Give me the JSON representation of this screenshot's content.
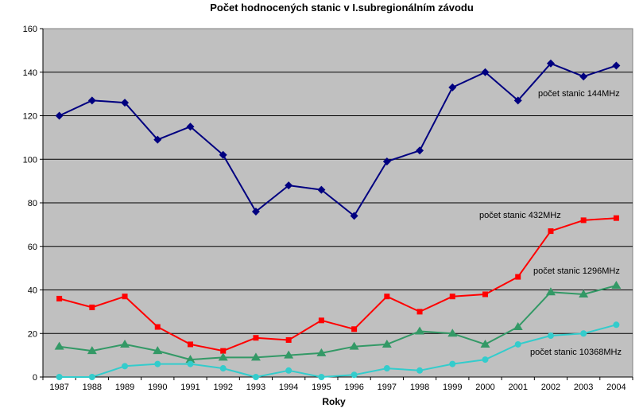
{
  "chart_data": {
    "type": "line",
    "title": "Počet hodnocených stanic v I.subregionálním závodu",
    "xlabel": "Roky",
    "ylabel": "",
    "ylim": [
      0,
      160
    ],
    "yticks": [
      0,
      20,
      40,
      60,
      80,
      100,
      120,
      140,
      160
    ],
    "grid": true,
    "legend": "labels next to lines",
    "plot_background": "#c0c0c0",
    "x": [
      "1987",
      "1988",
      "1989",
      "1990",
      "1991",
      "1992",
      "1993",
      "1994",
      "1995",
      "1996",
      "1997",
      "1998",
      "1999",
      "2000",
      "2001",
      "2002",
      "2003",
      "2004"
    ],
    "series": [
      {
        "name": "počet stanic 144MHz",
        "color": "#000080",
        "marker": "diamond",
        "values": [
          120,
          127,
          126,
          109,
          115,
          102,
          76,
          88,
          86,
          74,
          99,
          104,
          133,
          140,
          127,
          144,
          138,
          143
        ]
      },
      {
        "name": "počet stanic 432MHz",
        "color": "#ff0000",
        "marker": "square",
        "values": [
          36,
          32,
          37,
          23,
          15,
          12,
          18,
          17,
          26,
          22,
          37,
          30,
          37,
          38,
          46,
          67,
          72,
          73
        ]
      },
      {
        "name": "počet stanic 1296MHz",
        "color": "#339966",
        "marker": "triangle",
        "values": [
          14,
          12,
          15,
          12,
          8,
          9,
          9,
          10,
          11,
          14,
          15,
          21,
          20,
          15,
          23,
          39,
          38,
          42
        ]
      },
      {
        "name": "počet stanic 10368MHz",
        "color": "#33cccc",
        "marker": "circle",
        "values": [
          0,
          0,
          5,
          6,
          6,
          4,
          0,
          3,
          0,
          1,
          4,
          3,
          6,
          8,
          15,
          19,
          20,
          24
        ]
      }
    ]
  }
}
